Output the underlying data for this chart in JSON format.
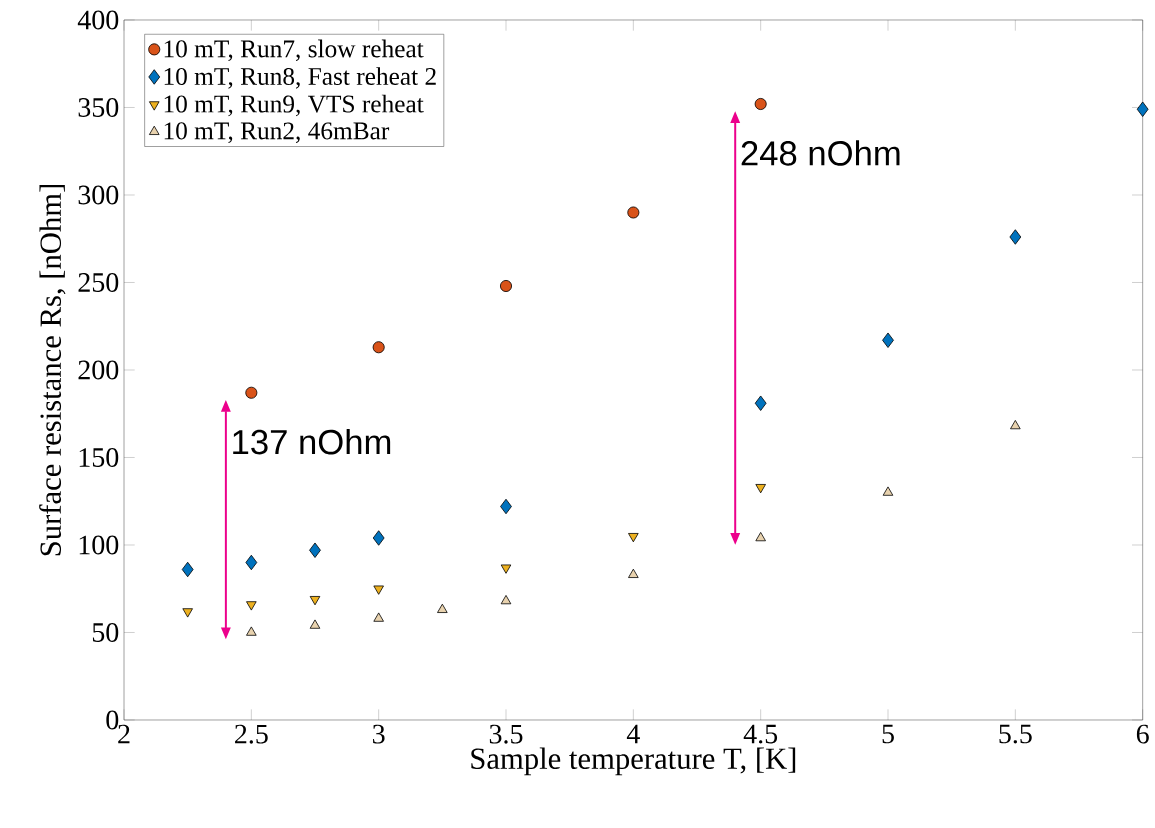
{
  "chart_data": {
    "type": "scatter",
    "xlabel": "Sample temperature T, [K]",
    "ylabel": "Surface resistance Rs, [nOhm]",
    "xlim": [
      2,
      6
    ],
    "ylim": [
      0,
      400
    ],
    "xticks": [
      2,
      2.5,
      3,
      3.5,
      4,
      4.5,
      5,
      5.5,
      6
    ],
    "yticks": [
      0,
      50,
      100,
      150,
      200,
      250,
      300,
      350,
      400
    ],
    "grid": false,
    "legend": "top left",
    "series": [
      {
        "name": "10 mT, Run7, slow reheat",
        "color": "#d95319",
        "marker": "circle",
        "x": [
          2.5,
          3,
          3.5,
          4,
          4.5
        ],
        "values": [
          187,
          213,
          248,
          290,
          352
        ]
      },
      {
        "name": "10 mT, Run8, Fast reheat 2",
        "color": "#0072bd",
        "marker": "diamond",
        "x": [
          2.25,
          2.5,
          2.75,
          3,
          3.5,
          4.5,
          5,
          5.5,
          6
        ],
        "values": [
          86,
          90,
          97,
          104,
          122,
          181,
          217,
          276,
          349
        ]
      },
      {
        "name": "10 mT, Run9, VTS reheat",
        "color": "#edb120",
        "marker": "triangle-down",
        "x": [
          2.25,
          2.5,
          2.75,
          3,
          3.5,
          4,
          4.5
        ],
        "values": [
          62,
          66,
          69,
          75,
          87,
          105,
          133
        ]
      },
      {
        "name": "10 mT, Run2, 46mBar",
        "color": "#e8d2ae",
        "marker": "triangle",
        "x": [
          2.5,
          2.75,
          3,
          3.25,
          3.5,
          4,
          4.5,
          5,
          5.5
        ],
        "values": [
          50,
          54,
          58,
          63,
          68,
          83,
          104,
          130,
          168
        ]
      }
    ],
    "annotations": [
      {
        "text": "137 nOhm",
        "x": 2.5,
        "y": 187
      },
      {
        "text": "248 nOhm",
        "x": 4.5,
        "y": 352
      }
    ]
  }
}
